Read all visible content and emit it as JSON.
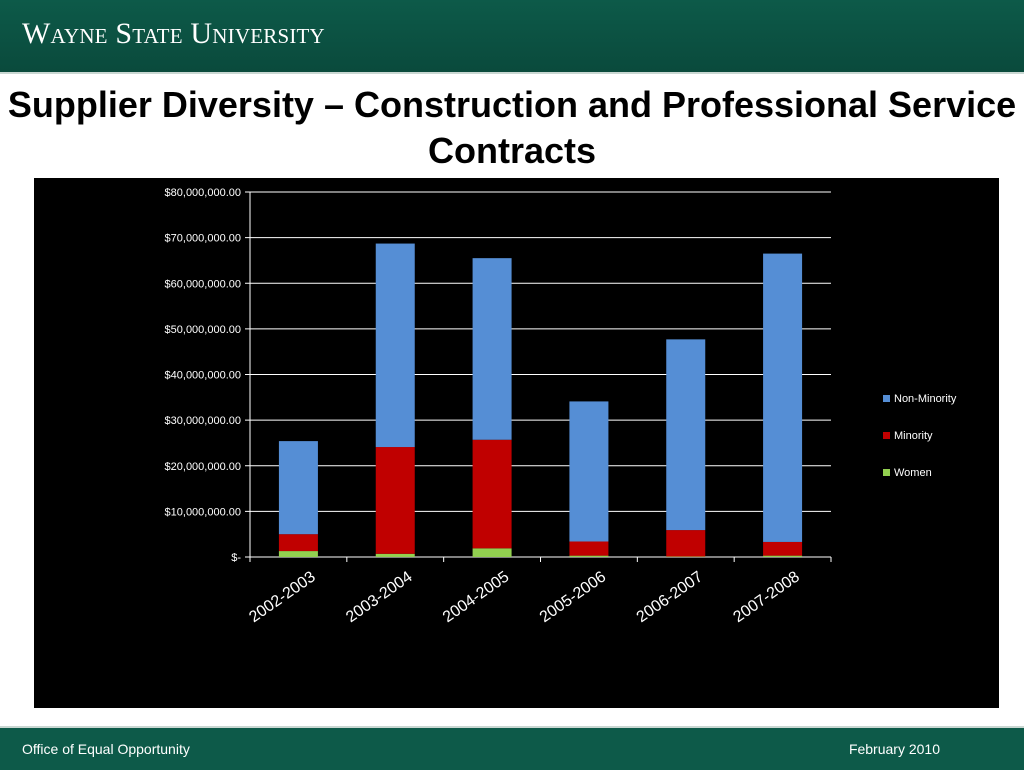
{
  "header": {
    "logo_text": "Wayne State University"
  },
  "slide": {
    "title": "Supplier Diversity – Construction and Professional Service Contracts"
  },
  "footer": {
    "left": "Office of Equal Opportunity",
    "right": "February 2010"
  },
  "chart_data": {
    "type": "bar",
    "stacked": true,
    "categories": [
      "2002-2003",
      "2003-2004",
      "2004-2005",
      "2005-2006",
      "2006-2007",
      "2007-2008"
    ],
    "series": [
      {
        "name": "Women",
        "color": "#92d050",
        "values": [
          1300000,
          700000,
          1900000,
          300000,
          100000,
          300000
        ]
      },
      {
        "name": "Minority",
        "color": "#c00000",
        "values": [
          3700000,
          23400000,
          23800000,
          3100000,
          5800000,
          3000000
        ]
      },
      {
        "name": "Non-Minority",
        "color": "#558ed5",
        "values": [
          20400000,
          44600000,
          39800000,
          30700000,
          41800000,
          63200000
        ]
      }
    ],
    "y_ticks": [
      {
        "value": 0,
        "label": "$-"
      },
      {
        "value": 10000000,
        "label": "$10,000,000.00"
      },
      {
        "value": 20000000,
        "label": "$20,000,000.00"
      },
      {
        "value": 30000000,
        "label": "$30,000,000.00"
      },
      {
        "value": 40000000,
        "label": "$40,000,000.00"
      },
      {
        "value": 50000000,
        "label": "$50,000,000.00"
      },
      {
        "value": 60000000,
        "label": "$60,000,000.00"
      },
      {
        "value": 70000000,
        "label": "$70,000,000.00"
      },
      {
        "value": 80000000,
        "label": "$80,000,000.00"
      }
    ],
    "ylim": [
      0,
      80000000
    ],
    "legend": {
      "position": "right",
      "order": [
        "Non-Minority",
        "Minority",
        "Women"
      ]
    },
    "gridlines": true,
    "background": "#000000"
  }
}
